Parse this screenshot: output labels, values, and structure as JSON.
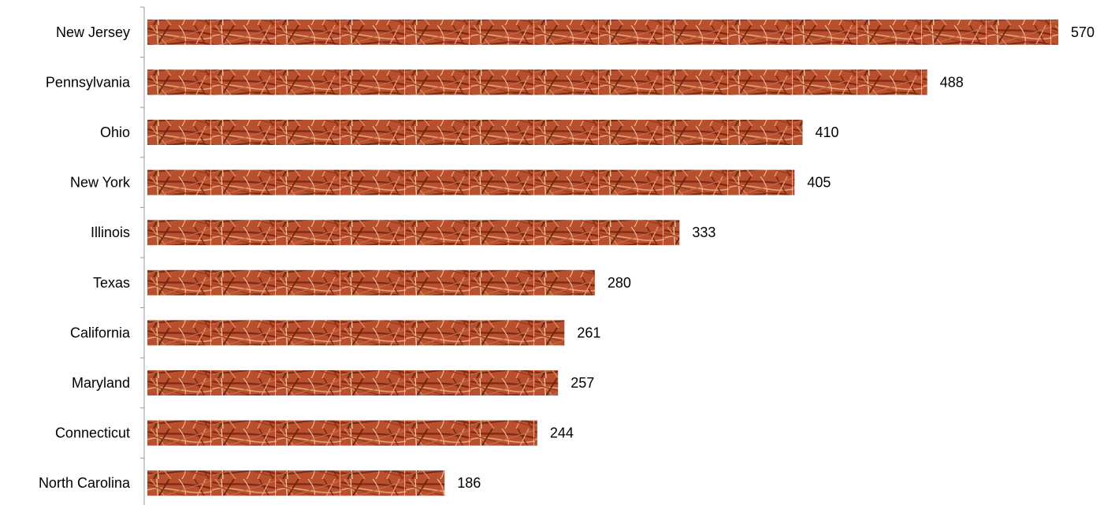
{
  "chart_data": {
    "type": "bar",
    "orientation": "horizontal",
    "categories": [
      "New Jersey",
      "Pennsylvania",
      "Ohio",
      "New York",
      "Illinois",
      "Texas",
      "California",
      "Maryland",
      "Connecticut",
      "North Carolina"
    ],
    "values": [
      570,
      488,
      410,
      405,
      333,
      280,
      261,
      257,
      244,
      186
    ],
    "title": "",
    "xlabel": "",
    "ylabel": "",
    "xlim": [
      0,
      570
    ],
    "grid": false,
    "legend": "none",
    "data_labels": true
  },
  "colors": {
    "bar_base": "#b8502e",
    "bar_dark": "#7a2a14",
    "bar_light": "#e8a07c",
    "axis": "#999999",
    "text": "#000000"
  }
}
